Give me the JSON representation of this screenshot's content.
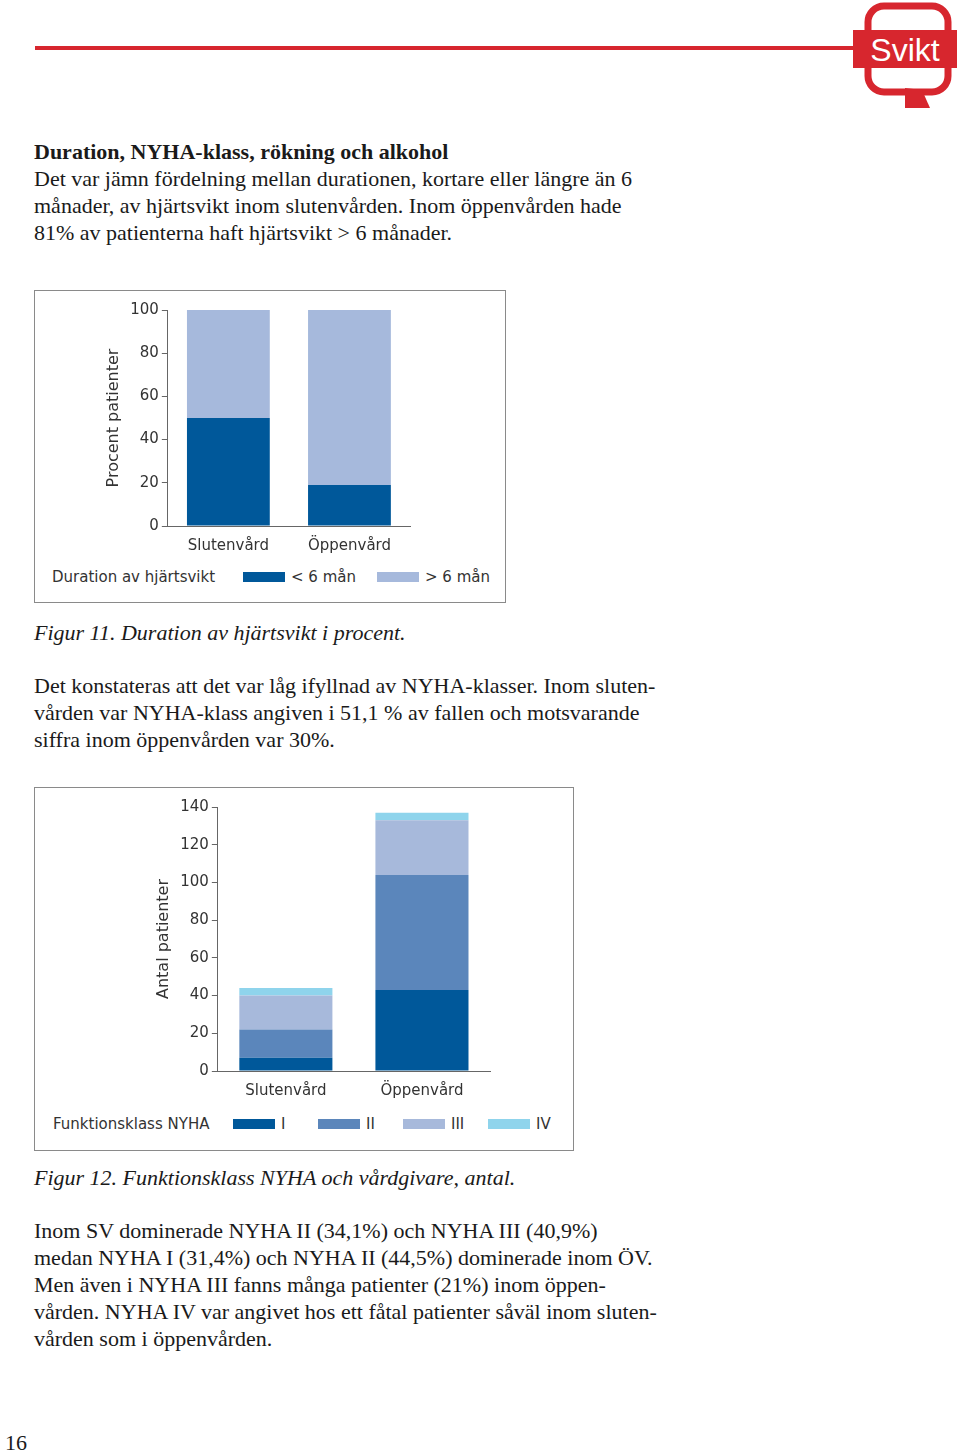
{
  "page": {
    "logo": "Svikt",
    "heading": "Duration, NYHA-klass, rökning och alkohol",
    "paragraphs": [
      [
        "Det var jämn fördelning mellan durationen, kortare eller längre än 6",
        "månader, av hjärtsvikt inom slutenvården. Inom öppenvården hade",
        "81% av patienterna haft hjärtsvikt > 6 månader."
      ],
      [
        "Det konstateras att det var låg ifyllnad av NYHA-klasser. Inom sluten-",
        "vården var NYHA-klass angiven i 51,1 % av fallen och motsvarande",
        "siffra inom öppenvården var 30%."
      ],
      [
        "Inom SV dominerade NYHA II (34,1%) och NYHA III (40,9%)",
        "medan NYHA I (31,4%) och NYHA II (44,5%) dominerade inom ÖV.",
        "Men även i NYHA III fanns många patienter (21%) inom öppen-",
        "vården. NYHA IV var angivet hos ett fåtal patienter såväl inom sluten-",
        "vården som i öppenvården."
      ]
    ],
    "captions": [
      "Figur 11. Duration av hjärtsvikt i procent.",
      "Figur 12. Funktionsklass NYHA och vårdgivare, antal."
    ],
    "page_number": "16"
  },
  "chart_data": [
    {
      "type": "bar",
      "stacked": true,
      "grid": false,
      "legend": "bottom",
      "ylabel": "Procent patienter",
      "legend_title": "Duration av hjärtsvikt",
      "categories": [
        "Slutenvård",
        "Öppenvård"
      ],
      "series": [
        {
          "name": "< 6 mån",
          "color": "#00589a",
          "values": [
            50,
            19
          ]
        },
        {
          "name": "> 6 mån",
          "color": "#a6b9dc",
          "values": [
            50,
            81
          ]
        }
      ],
      "ylim": [
        0,
        100
      ],
      "yticks": [
        0,
        20,
        40,
        60,
        80,
        100
      ]
    },
    {
      "type": "bar",
      "stacked": true,
      "grid": false,
      "legend": "bottom",
      "ylabel": "Antal patienter",
      "legend_title": "Funktionsklass NYHA",
      "categories": [
        "Slutenvård",
        "Öppenvård"
      ],
      "series": [
        {
          "name": "I",
          "color": "#00589a",
          "values": [
            7,
            43
          ]
        },
        {
          "name": "II",
          "color": "#5b86bb",
          "values": [
            15,
            61
          ]
        },
        {
          "name": "III",
          "color": "#a7b9db",
          "values": [
            18,
            29
          ]
        },
        {
          "name": "IV",
          "color": "#8fd4ec",
          "values": [
            4,
            4
          ]
        }
      ],
      "ylim": [
        0,
        140
      ],
      "yticks": [
        0,
        20,
        40,
        60,
        80,
        100,
        120,
        140
      ]
    }
  ]
}
